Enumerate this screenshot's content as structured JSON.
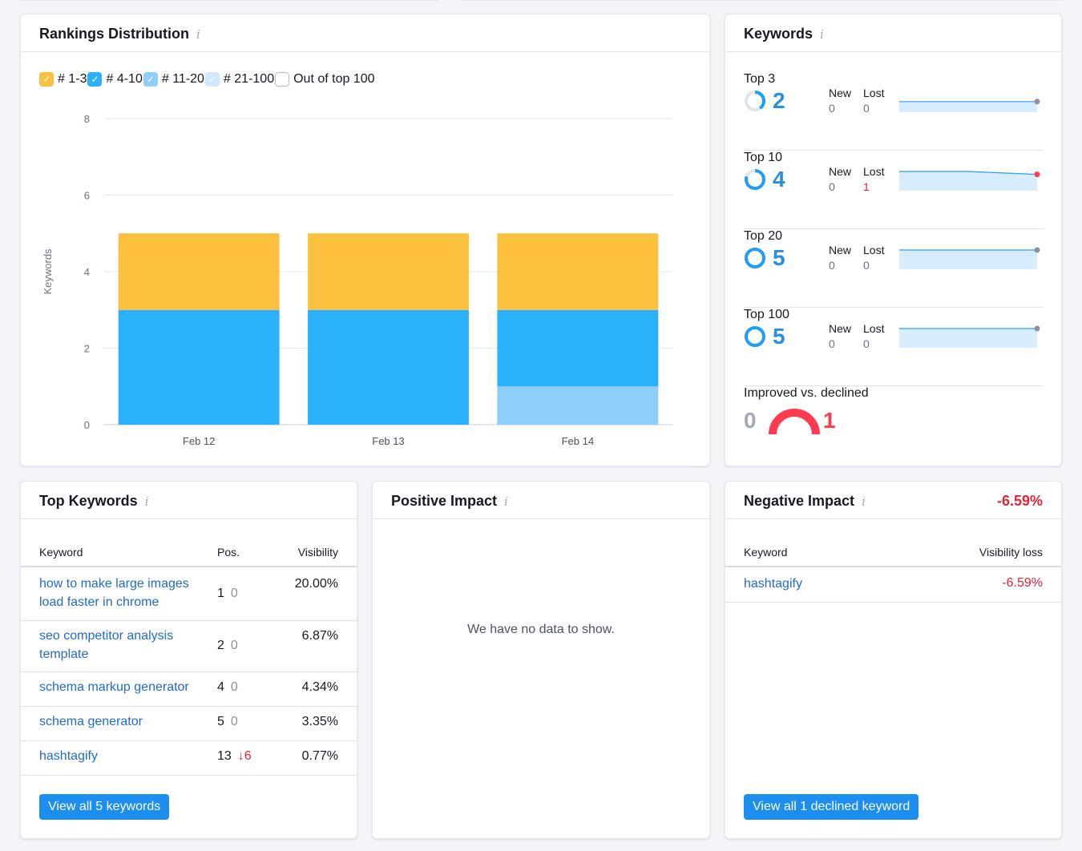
{
  "colors": {
    "top3": "#fbc13e",
    "top10": "#2bb0fb",
    "top20": "#8fcdfb",
    "top100": "#cfe8fd",
    "accent": "#1c8ef0",
    "negative": "#e4233a"
  },
  "rankings": {
    "title": "Rankings Distribution",
    "info_icon": "i",
    "legend": [
      {
        "label": "# 1-3",
        "color": "#fbc13e",
        "checked": true
      },
      {
        "label": "# 4-10",
        "color": "#2bb0fb",
        "checked": true
      },
      {
        "label": "# 11-20",
        "color": "#8fcdfb",
        "checked": true
      },
      {
        "label": "# 21-100",
        "color": "#cfe8fd",
        "checked": true
      },
      {
        "label": "Out of top 100",
        "color": "#ffffff",
        "checked": false
      }
    ]
  },
  "chart_data": {
    "type": "bar",
    "stacked": true,
    "categories": [
      "Feb 12",
      "Feb 13",
      "Feb 14"
    ],
    "series": [
      {
        "name": "# 11-20",
        "color": "#8fcdfb",
        "values": [
          0,
          0,
          1
        ]
      },
      {
        "name": "# 4-10",
        "color": "#2bb0fb",
        "values": [
          3,
          3,
          2
        ]
      },
      {
        "name": "# 1-3",
        "color": "#fbc13e",
        "values": [
          2,
          2,
          2
        ]
      }
    ],
    "ylabel": "Keywords",
    "ylim": [
      0,
      8
    ],
    "yticks": [
      "0",
      "2",
      "4",
      "6",
      "8"
    ],
    "grid": true
  },
  "keywords": {
    "title": "Keywords",
    "info_icon": "i",
    "new_label": "New",
    "lost_label": "Lost",
    "rows": [
      {
        "label": "Top 3",
        "count": "2",
        "fraction": 0.4,
        "new": "0",
        "lost": "0",
        "lost_red": false,
        "trend": [
          2,
          2,
          2
        ]
      },
      {
        "label": "Top 10",
        "count": "4",
        "fraction": 0.8,
        "new": "0",
        "lost": "1",
        "lost_red": true,
        "trend": [
          5,
          5,
          4
        ]
      },
      {
        "label": "Top 20",
        "count": "5",
        "fraction": 1.0,
        "new": "0",
        "lost": "0",
        "lost_red": false,
        "trend": [
          5,
          5,
          5
        ]
      },
      {
        "label": "Top 100",
        "count": "5",
        "fraction": 1.0,
        "new": "0",
        "lost": "0",
        "lost_red": false,
        "trend": [
          5,
          5,
          5
        ]
      }
    ],
    "improved_label": "Improved vs. declined",
    "improved": "0",
    "declined": "1"
  },
  "top_keywords": {
    "title": "Top Keywords",
    "info_icon": "i",
    "col_keyword": "Keyword",
    "col_pos": "Pos.",
    "col_visibility": "Visibility",
    "rows": [
      {
        "keyword": "how to make large images load faster in chrome",
        "pos": "1",
        "change": "0",
        "down": false,
        "visibility": "20.00%"
      },
      {
        "keyword": "seo competitor analysis template",
        "pos": "2",
        "change": "0",
        "down": false,
        "visibility": "6.87%"
      },
      {
        "keyword": "schema markup generator",
        "pos": "4",
        "change": "0",
        "down": false,
        "visibility": "4.34%"
      },
      {
        "keyword": "schema generator",
        "pos": "5",
        "change": "0",
        "down": false,
        "visibility": "3.35%"
      },
      {
        "keyword": "hashtagify",
        "pos": "13",
        "change": "↓6",
        "down": true,
        "visibility": "0.77%"
      }
    ],
    "button": "View all 5 keywords"
  },
  "positive_impact": {
    "title": "Positive Impact",
    "info_icon": "i",
    "empty_text": "We have no data to show."
  },
  "negative_impact": {
    "title": "Negative Impact",
    "info_icon": "i",
    "total": "-6.59%",
    "col_keyword": "Keyword",
    "col_loss": "Visibility loss",
    "rows": [
      {
        "keyword": "hashtagify",
        "loss": "-6.59%"
      }
    ],
    "button": "View all 1 declined keyword"
  }
}
